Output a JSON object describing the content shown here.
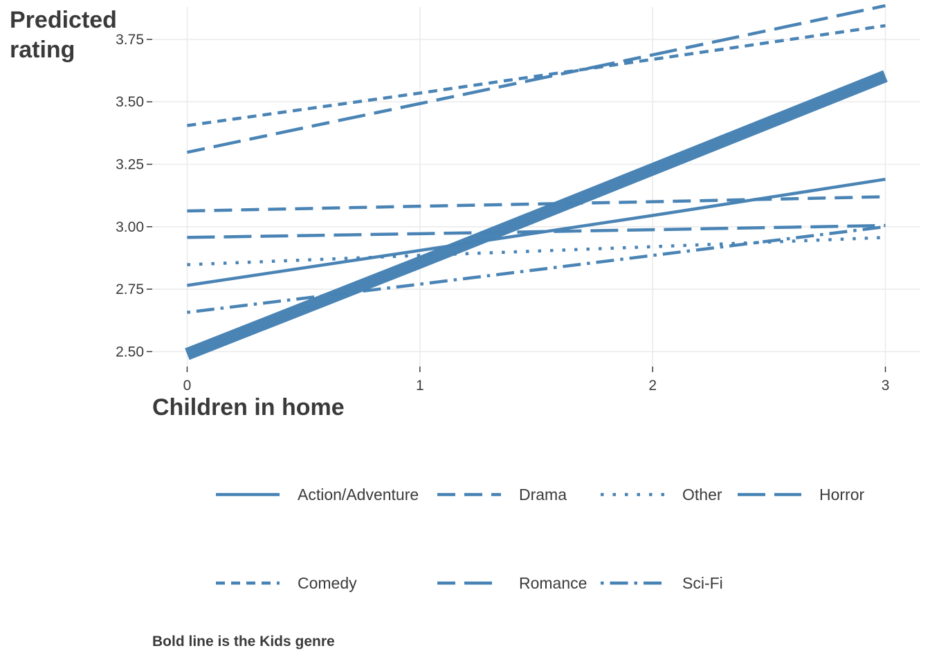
{
  "chart_data": {
    "type": "line",
    "ylabel": "Predicted rating",
    "xlabel": "Children in home",
    "x": [
      0,
      1,
      2,
      3
    ],
    "xticks": [
      "0",
      "1",
      "2",
      "3"
    ],
    "yticks": [
      "2.50",
      "2.75",
      "3.00",
      "3.25",
      "3.50",
      "3.75"
    ],
    "ylim": [
      2.44,
      3.88
    ],
    "xlim": [
      -0.15,
      3.15
    ],
    "grid": true,
    "legend_position": "bottom",
    "line_color": "#4682b4",
    "series": [
      {
        "name": "Action/Adventure",
        "dash": "solid",
        "values": [
          2.765,
          2.905,
          3.045,
          3.19
        ]
      },
      {
        "name": "Drama",
        "dash": "dashed",
        "values": [
          3.063,
          3.082,
          3.1,
          3.12
        ]
      },
      {
        "name": "Other",
        "dash": "dotted",
        "values": [
          2.848,
          2.885,
          2.92,
          2.957
        ]
      },
      {
        "name": "Horror",
        "dash": "longdash",
        "values": [
          2.957,
          2.972,
          2.988,
          3.005
        ]
      },
      {
        "name": "Comedy",
        "dash": "dotted-short",
        "values": [
          3.405,
          3.535,
          3.67,
          3.805
        ]
      },
      {
        "name": "Romance",
        "dash": "twodash",
        "values": [
          3.298,
          3.493,
          3.688,
          3.885
        ]
      },
      {
        "name": "Sci-Fi",
        "dash": "dotdash",
        "values": [
          2.657,
          2.77,
          2.885,
          3.0
        ]
      },
      {
        "name": "",
        "dash": "solid-bold",
        "values": [
          2.49,
          2.857,
          3.23,
          3.603
        ]
      }
    ]
  },
  "caption": "Bold line is the Kids genre"
}
